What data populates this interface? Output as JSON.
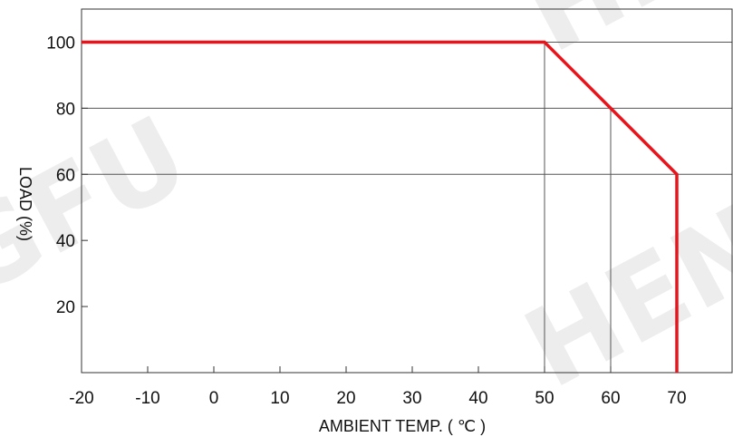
{
  "chart_data": {
    "type": "line",
    "x": [
      -20,
      50,
      60,
      70,
      70
    ],
    "series": [
      {
        "values": [
          100,
          100,
          80,
          60,
          0
        ],
        "color": "#e8131b"
      }
    ],
    "xticks": [
      -20,
      -10,
      0,
      10,
      20,
      30,
      40,
      50,
      60,
      70
    ],
    "xtick_labels": [
      "-20",
      "-10",
      "0",
      "10",
      "20",
      "30",
      "40",
      "50",
      "60",
      "70"
    ],
    "yticks": [
      20,
      40,
      60,
      80,
      100
    ],
    "ytick_labels": [
      "20",
      "40",
      "60",
      "80",
      "100"
    ],
    "xlabel": "AMBIENT  TEMP.  ( ℃ )",
    "ylabel": "LOAD (%)",
    "xlim": [
      -20,
      80
    ],
    "ylim": [
      0,
      110
    ],
    "grid": "horizontal at 60, 80, 100; vertical drops at 50, 60",
    "colors": {
      "line": "#e8131b",
      "axis": "#333333",
      "grid": "#555555"
    }
  },
  "watermark": {
    "text_left": "GFU",
    "text_right": "HEN",
    "text_top": "HE"
  }
}
